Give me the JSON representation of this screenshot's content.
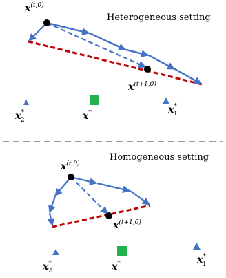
{
  "colors": {
    "arrow": "#4472C4",
    "dashed_line": "#C00000",
    "point": "#000000",
    "triangle": "#4472C4",
    "square": "#22B14C",
    "divider": "#999999"
  },
  "top": {
    "title": "Heterogeneous setting",
    "start_label": {
      "base": "x",
      "sup": "(t,0)"
    },
    "end_label": {
      "base": "x",
      "sup": "(t+1,0)"
    },
    "opt1_label": {
      "base": "x",
      "sub": "1",
      "sup": "*"
    },
    "opt2_label": {
      "base": "x",
      "sub": "2",
      "sup": "*"
    },
    "global_label": {
      "base": "x",
      "sup": "*"
    }
  },
  "bottom": {
    "title": "Homogeneous setting",
    "start_label": {
      "base": "x",
      "sup": "(t,0)"
    },
    "end_label": {
      "base": "x",
      "sup": "(t+1,0)"
    },
    "opt1_label": {
      "base": "x",
      "sub": "1",
      "sup": "*"
    },
    "opt2_label": {
      "base": "x",
      "sub": "2",
      "sup": "*"
    },
    "global_label": {
      "base": "x",
      "sup": "*"
    }
  }
}
